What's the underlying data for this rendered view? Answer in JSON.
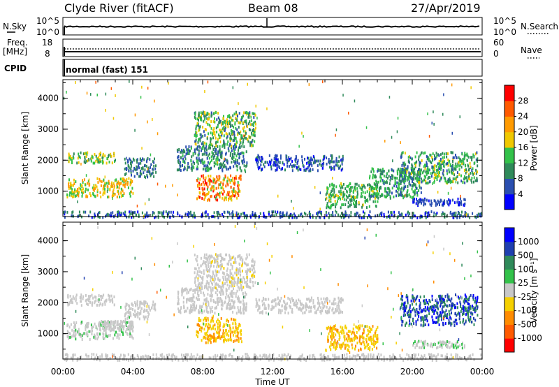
{
  "header": {
    "station": "Clyde River (fitACF)",
    "beam": "Beam 08",
    "date": "27/Apr/2019"
  },
  "strips": {
    "nsky_label": "N.Sky",
    "nsky_ticks": [
      "10^5",
      "10^0"
    ],
    "nsearch_label": "N.Search",
    "nsearch_ticks": [
      "10^5",
      "10^0"
    ],
    "freq_label_1": "Freq.",
    "freq_label_2": "[MHz]",
    "freq_ticks": [
      "18",
      "8"
    ],
    "nave_label": "Nave",
    "nave_ticks": [
      "60",
      "0"
    ],
    "cpid_label": "CPID",
    "cpid_value": "normal (fast) 151"
  },
  "colors": {
    "power": [
      "#0000ff",
      "#2a4fb0",
      "#2f8a5a",
      "#33c24a",
      "#f0c800",
      "#ff9a00",
      "#ff5a00",
      "#ff0000"
    ],
    "velocity": [
      "#ff0000",
      "#ff5a00",
      "#ff8c00",
      "#f5d000",
      "#c8c8c8",
      "#33c24a",
      "#2f8a5a",
      "#1f3fb0",
      "#0000ff"
    ]
  },
  "chart_data": [
    {
      "type": "heatmap",
      "panel": "power",
      "xlabel": "",
      "ylabel": "Slant Range [km]",
      "x_ticks": [
        "00:00",
        "04:00",
        "08:00",
        "12:00",
        "16:00",
        "20:00",
        "00:00"
      ],
      "y_ticks": [
        "1000",
        "2000",
        "3000",
        "4000"
      ],
      "xlim_hours": [
        0,
        24
      ],
      "ylim_km": [
        180,
        4600
      ],
      "colorbar_label": "Power [dB]",
      "colorbar_ticks": [
        "4",
        "8",
        "12",
        "16",
        "20",
        "24",
        "28"
      ],
      "colorbar_range": [
        0,
        32
      ],
      "echo_regions": [
        {
          "t0": 0.2,
          "t1": 4.0,
          "r0": 850,
          "r1": 1450,
          "v0": 12,
          "v1": 24
        },
        {
          "t0": 0.2,
          "t1": 3.0,
          "r0": 1950,
          "r1": 2300,
          "v0": 8,
          "v1": 20
        },
        {
          "t0": 3.5,
          "t1": 5.3,
          "r0": 1500,
          "r1": 2100,
          "v0": 4,
          "v1": 12
        },
        {
          "t0": 7.6,
          "t1": 10.2,
          "r0": 750,
          "r1": 1550,
          "v0": 14,
          "v1": 30
        },
        {
          "t0": 6.5,
          "t1": 10.5,
          "r0": 1700,
          "r1": 2500,
          "v0": 4,
          "v1": 14
        },
        {
          "t0": 7.5,
          "t1": 11.0,
          "r0": 2500,
          "r1": 3600,
          "v0": 6,
          "v1": 20
        },
        {
          "t0": 11.0,
          "t1": 16.0,
          "r0": 1700,
          "r1": 2200,
          "v0": 2,
          "v1": 10
        },
        {
          "t0": 15.0,
          "t1": 18.0,
          "r0": 500,
          "r1": 1300,
          "v0": 8,
          "v1": 18
        },
        {
          "t0": 17.5,
          "t1": 20.5,
          "r0": 800,
          "r1": 1800,
          "v0": 6,
          "v1": 16
        },
        {
          "t0": 19.3,
          "t1": 23.7,
          "r0": 1300,
          "r1": 2300,
          "v0": 6,
          "v1": 18
        },
        {
          "t0": 20.0,
          "t1": 23.0,
          "r0": 580,
          "r1": 800,
          "v0": 2,
          "v1": 8
        },
        {
          "t0": 0.0,
          "t1": 24.0,
          "r0": 180,
          "r1": 380,
          "v0": 2,
          "v1": 12
        }
      ]
    },
    {
      "type": "heatmap",
      "panel": "velocity",
      "xlabel": "Time UT",
      "ylabel": "Slant Range [km]",
      "x_ticks": [
        "00:00",
        "04:00",
        "08:00",
        "12:00",
        "16:00",
        "20:00",
        "00:00"
      ],
      "y_ticks": [
        "1000",
        "2000",
        "3000",
        "4000"
      ],
      "xlim_hours": [
        0,
        24
      ],
      "ylim_km": [
        180,
        4600
      ],
      "colorbar_label": "Velocity [m s⁻¹]",
      "colorbar_ticks": [
        "-1000",
        "-500",
        "-100",
        "-25",
        "25",
        "100",
        "500",
        "1000"
      ],
      "colorbar_range": [
        -1500,
        1500
      ],
      "echo_regions": [
        {
          "t0": 0.2,
          "t1": 4.0,
          "r0": 850,
          "r1": 1450,
          "v0": 40,
          "v1": 200
        },
        {
          "t0": 2.0,
          "t1": 4.0,
          "r0": 1150,
          "r1": 1450,
          "v0": -150,
          "v1": -40
        },
        {
          "t0": 0.2,
          "t1": 3.0,
          "r0": 1950,
          "r1": 2300,
          "v0": -20,
          "v1": 20
        },
        {
          "t0": 3.5,
          "t1": 5.3,
          "r0": 1500,
          "r1": 2100,
          "v0": -150,
          "v1": -20
        },
        {
          "t0": 7.6,
          "t1": 10.2,
          "r0": 750,
          "r1": 1550,
          "v0": -600,
          "v1": -250
        },
        {
          "t0": 6.5,
          "t1": 10.5,
          "r0": 1700,
          "r1": 2500,
          "v0": -20,
          "v1": 20
        },
        {
          "t0": 7.5,
          "t1": 11.0,
          "r0": 2500,
          "r1": 3600,
          "v0": -200,
          "v1": 20
        },
        {
          "t0": 11.0,
          "t1": 16.0,
          "r0": 1700,
          "r1": 2200,
          "v0": -20,
          "v1": 20
        },
        {
          "t0": 15.0,
          "t1": 18.0,
          "r0": 500,
          "r1": 1300,
          "v0": -600,
          "v1": -200
        },
        {
          "t0": 19.3,
          "t1": 23.7,
          "r0": 1300,
          "r1": 2300,
          "v0": 500,
          "v1": 1400
        },
        {
          "t0": 20.0,
          "t1": 23.0,
          "r0": 580,
          "r1": 800,
          "v0": 40,
          "v1": 200
        },
        {
          "t0": 0.0,
          "t1": 24.0,
          "r0": 180,
          "r1": 380,
          "v0": -120,
          "v1": 20
        }
      ]
    }
  ]
}
